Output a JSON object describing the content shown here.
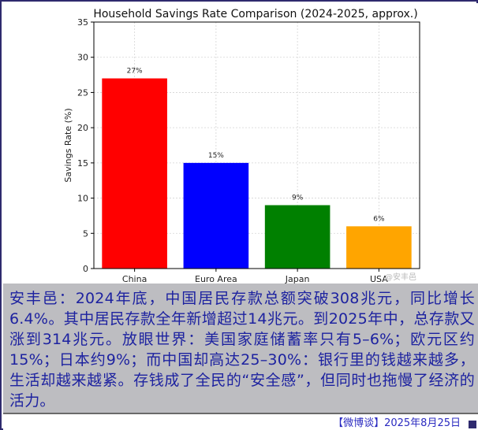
{
  "chart_data": {
    "type": "bar",
    "title": "Household Savings Rate Comparison (2024-2025, approx.)",
    "xlabel": "",
    "ylabel": "Savings Rate (%)",
    "ylim": [
      0,
      35
    ],
    "yticks": [
      0,
      5,
      10,
      15,
      20,
      25,
      30,
      35
    ],
    "grid": true,
    "categories": [
      "China",
      "Euro Area",
      "Japan",
      "USA"
    ],
    "values": [
      27,
      15,
      9,
      6
    ],
    "data_labels": [
      "27%",
      "15%",
      "9%",
      "6%"
    ],
    "colors": [
      "#ff0000",
      "#0000ff",
      "#008000",
      "#ffa500"
    ]
  },
  "watermark": "@安丰邑",
  "caption": "安丰邑：2024年底，中国居民存款总额突破308兆元，同比增长6.4%。其中居民存款全年新增超过14兆元。到2025年中，总存款又涨到314兆元。放眼世界：美国家庭储蓄率只有5–6%；欧元区约15%；日本约9%；而中国却高达25–30%：银行里的钱越来越多，生活却越来越紧。存钱成了全民的“安全感”，但同时也拖慢了经济的活力。",
  "footer": "【微博谈】2025年8月25日"
}
